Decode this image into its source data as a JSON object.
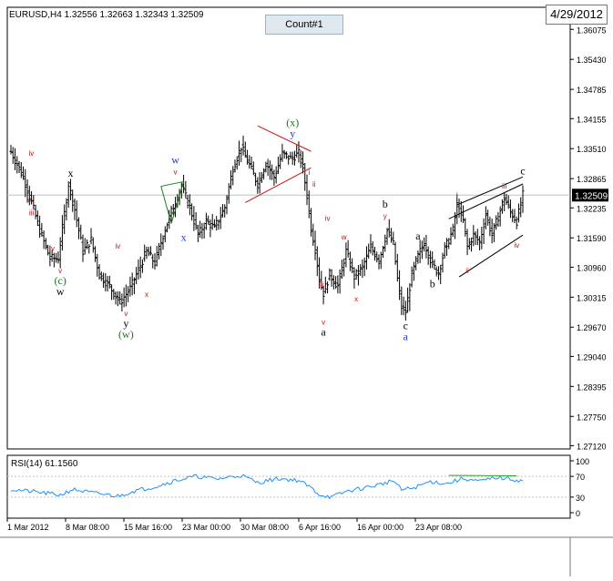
{
  "colors": {
    "bar": "#000000",
    "grid": "#c0c0c0",
    "wave_red": "#d01010",
    "wave_blue": "#1f3fbf",
    "wave_green": "#1a7a1a",
    "rsi_line": "#1e90ff",
    "rsi_level_line": "#2ea02e"
  },
  "header": {
    "title": "EURUSD,H4  1.32556 1.32663 1.32343 1.32509",
    "count_label": "Count#1",
    "date_label": "4/29/2012"
  },
  "chart_data": [
    {
      "type": "candlestick",
      "symbol": "EURUSD",
      "timeframe": "H4",
      "ohlc": {
        "open": 1.32556,
        "high": 1.32663,
        "low": 1.32343,
        "close": 1.32509
      },
      "current_price_label": "1.32509",
      "y_ticks": [
        "1.36075",
        "1.35430",
        "1.34785",
        "1.34155",
        "1.33510",
        "1.32865",
        "1.32235",
        "1.31590",
        "1.30960",
        "1.30315",
        "1.29670",
        "1.29040",
        "1.28395",
        "1.27750",
        "1.27120"
      ],
      "x_tick_labels": [
        "1 Mar 2012",
        "8 Mar 08:00",
        "15 Mar 16:00",
        "23 Mar 00:00",
        "30 Mar 08:00",
        "6 Apr 16:00",
        "16 Apr 00:00",
        "23 Apr 08:00"
      ],
      "ylim": [
        1.2705,
        1.3655
      ],
      "path_anchors": [
        [
          0,
          1.3345
        ],
        [
          6,
          1.329
        ],
        [
          10,
          1.3235
        ],
        [
          14,
          1.3175
        ],
        [
          19,
          1.3115
        ],
        [
          23,
          1.3115
        ],
        [
          28,
          1.3275
        ],
        [
          31,
          1.322
        ],
        [
          35,
          1.313
        ],
        [
          39,
          1.3155
        ],
        [
          43,
          1.308
        ],
        [
          48,
          1.3055
        ],
        [
          53,
          1.302
        ],
        [
          58,
          1.305
        ],
        [
          62,
          1.309
        ],
        [
          66,
          1.313
        ],
        [
          70,
          1.3105
        ],
        [
          74,
          1.3165
        ],
        [
          78,
          1.3215
        ],
        [
          83,
          1.327
        ],
        [
          87,
          1.3225
        ],
        [
          91,
          1.3165
        ],
        [
          95,
          1.3195
        ],
        [
          99,
          1.318
        ],
        [
          104,
          1.3225
        ],
        [
          108,
          1.331
        ],
        [
          112,
          1.3355
        ],
        [
          116,
          1.3315
        ],
        [
          120,
          1.3275
        ],
        [
          124,
          1.332
        ],
        [
          128,
          1.329
        ],
        [
          132,
          1.334
        ],
        [
          136,
          1.333
        ],
        [
          140,
          1.334
        ],
        [
          142,
          1.331
        ],
        [
          144,
          1.325
        ],
        [
          146,
          1.318
        ],
        [
          148,
          1.3135
        ],
        [
          150,
          1.307
        ],
        [
          152,
          1.304
        ],
        [
          155,
          1.308
        ],
        [
          159,
          1.3055
        ],
        [
          163,
          1.313
        ],
        [
          167,
          1.3075
        ],
        [
          171,
          1.3095
        ],
        [
          175,
          1.314
        ],
        [
          179,
          1.311
        ],
        [
          183,
          1.3175
        ],
        [
          186,
          1.3145
        ],
        [
          188,
          1.307
        ],
        [
          190,
          1.301
        ],
        [
          192,
          1.3
        ],
        [
          195,
          1.308
        ],
        [
          198,
          1.312
        ],
        [
          201,
          1.315
        ],
        [
          205,
          1.31
        ],
        [
          208,
          1.3085
        ],
        [
          211,
          1.3135
        ],
        [
          215,
          1.3175
        ],
        [
          217,
          1.323
        ],
        [
          220,
          1.3195
        ],
        [
          222,
          1.314
        ],
        [
          225,
          1.3165
        ],
        [
          228,
          1.315
        ],
        [
          231,
          1.321
        ],
        [
          234,
          1.3165
        ],
        [
          237,
          1.3205
        ],
        [
          240,
          1.3245
        ],
        [
          243,
          1.3215
        ],
        [
          246,
          1.3195
        ],
        [
          248,
          1.323
        ],
        [
          249,
          1.3251
        ]
      ],
      "rsi": {
        "label": "RSI(14) 61.1560",
        "ylim": [
          0,
          100
        ],
        "ticks": [
          "100",
          "70",
          "30",
          "0"
        ],
        "levels": [
          70,
          30
        ],
        "anchors": [
          [
            0,
            45
          ],
          [
            12,
            40
          ],
          [
            24,
            34
          ],
          [
            30,
            45
          ],
          [
            40,
            38
          ],
          [
            52,
            32
          ],
          [
            60,
            42
          ],
          [
            70,
            50
          ],
          [
            80,
            62
          ],
          [
            90,
            70
          ],
          [
            100,
            65
          ],
          [
            112,
            72
          ],
          [
            120,
            58
          ],
          [
            130,
            66
          ],
          [
            140,
            62
          ],
          [
            146,
            48
          ],
          [
            150,
            35
          ],
          [
            156,
            30
          ],
          [
            164,
            42
          ],
          [
            172,
            48
          ],
          [
            180,
            55
          ],
          [
            186,
            62
          ],
          [
            190,
            44
          ],
          [
            196,
            48
          ],
          [
            204,
            60
          ],
          [
            212,
            56
          ],
          [
            220,
            66
          ],
          [
            228,
            60
          ],
          [
            236,
            68
          ],
          [
            244,
            64
          ],
          [
            249,
            61
          ]
        ]
      },
      "wave_labels": [
        {
          "text": "iv",
          "color": "wave_red",
          "i": 6,
          "p": 1.3342,
          "pos": "right"
        },
        {
          "text": "v",
          "color": "wave_red",
          "i": 9,
          "p": 1.3218,
          "pos": "above"
        },
        {
          "text": "iii",
          "color": "wave_red",
          "i": 10,
          "p": 1.3235,
          "pos": "below"
        },
        {
          "text": "iv",
          "color": "wave_red",
          "i": 20,
          "p": 1.3115,
          "pos": "above"
        },
        {
          "text": "v",
          "color": "wave_red",
          "i": 24,
          "p": 1.311,
          "pos": "below"
        },
        {
          "text": "(c)",
          "color": "wave_green",
          "i": 24,
          "p": 1.311,
          "pos": "below2"
        },
        {
          "text": "w",
          "color": "bar",
          "i": 24,
          "p": 1.311,
          "pos": "below3"
        },
        {
          "text": "x",
          "color": "bar",
          "i": 29,
          "p": 1.3275,
          "pos": "above"
        },
        {
          "text": "iv",
          "color": "wave_red",
          "i": 52,
          "p": 1.312,
          "pos": "above"
        },
        {
          "text": "v",
          "color": "wave_red",
          "i": 56,
          "p": 1.3018,
          "pos": "below"
        },
        {
          "text": "y",
          "color": "bar",
          "i": 56,
          "p": 1.3018,
          "pos": "below2"
        },
        {
          "text": "(w)",
          "color": "wave_green",
          "i": 56,
          "p": 1.3018,
          "pos": "below3"
        },
        {
          "text": "x",
          "color": "wave_red",
          "i": 66,
          "p": 1.306,
          "pos": "below"
        },
        {
          "text": "w",
          "color": "wave_blue",
          "i": 80,
          "p": 1.328,
          "pos": "above2"
        },
        {
          "text": "v",
          "color": "wave_red",
          "i": 80,
          "p": 1.328,
          "pos": "above"
        },
        {
          "text": "x",
          "color": "wave_blue",
          "i": 84,
          "p": 1.318,
          "pos": "below"
        },
        {
          "text": "(x)",
          "color": "wave_green",
          "i": 137,
          "p": 1.336,
          "pos": "above2"
        },
        {
          "text": "y",
          "color": "wave_blue",
          "i": 137,
          "p": 1.336,
          "pos": "above"
        },
        {
          "text": "i",
          "color": "wave_red",
          "i": 142,
          "p": 1.33,
          "pos": "right"
        },
        {
          "text": "ii",
          "color": "wave_red",
          "i": 144,
          "p": 1.3275,
          "pos": "right"
        },
        {
          "text": "iv",
          "color": "wave_red",
          "i": 154,
          "p": 1.318,
          "pos": "above"
        },
        {
          "text": "iii",
          "color": "wave_red",
          "i": 151,
          "p": 1.308,
          "pos": "below"
        },
        {
          "text": "v",
          "color": "wave_red",
          "i": 152,
          "p": 1.3,
          "pos": "below"
        },
        {
          "text": "a",
          "color": "bar",
          "i": 152,
          "p": 1.3,
          "pos": "below2"
        },
        {
          "text": "w",
          "color": "wave_red",
          "i": 162,
          "p": 1.314,
          "pos": "above"
        },
        {
          "text": "x",
          "color": "wave_red",
          "i": 168,
          "p": 1.305,
          "pos": "below"
        },
        {
          "text": "y",
          "color": "wave_red",
          "i": 182,
          "p": 1.3185,
          "pos": "above"
        },
        {
          "text": "b",
          "color": "bar",
          "i": 182,
          "p": 1.3185,
          "pos": "above2"
        },
        {
          "text": "c",
          "color": "bar",
          "i": 192,
          "p": 1.299,
          "pos": "below"
        },
        {
          "text": "a",
          "color": "wave_blue",
          "i": 192,
          "p": 1.299,
          "pos": "below2"
        },
        {
          "text": "a",
          "color": "bar",
          "i": 198,
          "p": 1.314,
          "pos": "above"
        },
        {
          "text": "b",
          "color": "bar",
          "i": 205,
          "p": 1.308,
          "pos": "below"
        },
        {
          "text": "i",
          "color": "wave_red",
          "i": 217,
          "p": 1.323,
          "pos": "above"
        },
        {
          "text": "ii",
          "color": "wave_red",
          "i": 222,
          "p": 1.311,
          "pos": "below"
        },
        {
          "text": "iii",
          "color": "wave_red",
          "i": 240,
          "p": 1.325,
          "pos": "above"
        },
        {
          "text": "iv",
          "color": "wave_red",
          "i": 246,
          "p": 1.3165,
          "pos": "below"
        },
        {
          "text": "c",
          "color": "bar",
          "i": 249,
          "p": 1.328,
          "pos": "above"
        }
      ]
    }
  ]
}
